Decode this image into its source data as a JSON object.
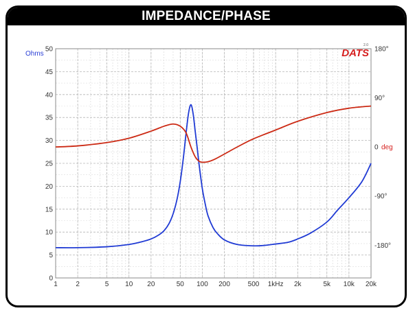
{
  "title": "IMPEDANCE/PHASE",
  "logo": {
    "text": "DATS",
    "version": "2.0"
  },
  "colors": {
    "impedance": "#1f3ad4",
    "phase": "#cc2a14",
    "left_axis": "#2a3fd6",
    "right_axis": "#d6201e"
  },
  "chart_data": {
    "type": "line",
    "title": "IMPEDANCE/PHASE",
    "x_scale": "log",
    "xlim": [
      1,
      20000
    ],
    "x_ticks": [
      1,
      2,
      5,
      10,
      20,
      50,
      100,
      200,
      500,
      1000,
      2000,
      5000,
      10000,
      20000
    ],
    "x_tick_labels": [
      "1",
      "2",
      "5",
      "10",
      "20",
      "50",
      "100",
      "200",
      "500",
      "1kHz",
      "2k",
      "5k",
      "10k",
      "20k"
    ],
    "y_left": {
      "label": "Ohms",
      "lim": [
        0,
        50
      ],
      "ticks": [
        0,
        5,
        10,
        15,
        20,
        25,
        30,
        35,
        40,
        45,
        50
      ],
      "tick_labels": [
        "0",
        "5",
        "10",
        "15",
        "20",
        "25",
        "30",
        "35",
        "40",
        "45",
        "50"
      ]
    },
    "y_right": {
      "label": "deg",
      "lim": [
        -240,
        180
      ],
      "ticks": [
        180,
        90,
        0,
        -90,
        -180
      ],
      "tick_labels": [
        "180°",
        "90°",
        "0",
        "-90°",
        "-180°"
      ]
    },
    "grid": true,
    "series": [
      {
        "axis": "left",
        "x": [
          1,
          2,
          5,
          10,
          15,
          20,
          25,
          30,
          35,
          40,
          45,
          50,
          55,
          60,
          65,
          70,
          75,
          80,
          85,
          90,
          100,
          110,
          120,
          140,
          160,
          200,
          300,
          500,
          700,
          1000,
          1500,
          2000,
          3000,
          5000,
          7000,
          10000,
          15000,
          20000
        ],
        "values": [
          6.6,
          6.6,
          6.8,
          7.3,
          7.9,
          8.5,
          9.3,
          10.3,
          11.8,
          14.0,
          17.0,
          21.0,
          26.0,
          31.5,
          36.0,
          37.8,
          35.8,
          32.0,
          28.5,
          25.0,
          19.5,
          16.0,
          13.5,
          11.0,
          9.7,
          8.3,
          7.3,
          7.0,
          7.1,
          7.4,
          7.8,
          8.5,
          9.8,
          12.2,
          14.8,
          17.5,
          21.0,
          25.0
        ]
      },
      {
        "axis": "right",
        "x": [
          1,
          2,
          5,
          10,
          20,
          30,
          40,
          50,
          60,
          70,
          80,
          90,
          100,
          120,
          150,
          200,
          300,
          500,
          1000,
          2000,
          5000,
          10000,
          20000
        ],
        "values": [
          0,
          2,
          8,
          16,
          29,
          38,
          42,
          38,
          26,
          0,
          -18,
          -26,
          -28,
          -27,
          -22,
          -13,
          0,
          15,
          31,
          47,
          63,
          71,
          75
        ]
      }
    ]
  }
}
